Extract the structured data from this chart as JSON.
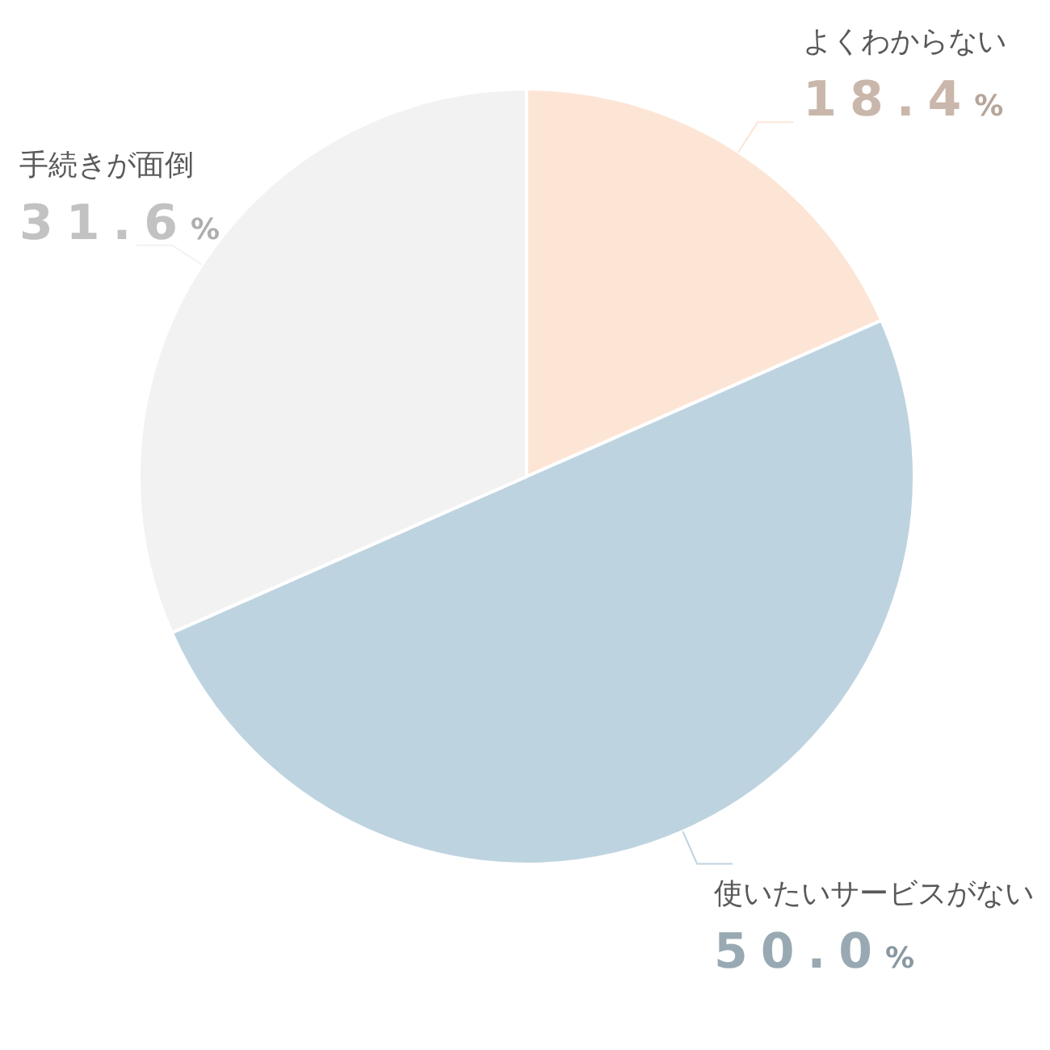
{
  "chart_data": {
    "type": "pie",
    "categories": [
      "よくわからない",
      "使いたいサービスがない",
      "手続きが面倒"
    ],
    "values": [
      18.4,
      50.0,
      31.6
    ],
    "colors": [
      "#fde5d6",
      "#bed3e0",
      "#f2f2f2"
    ],
    "value_labels": [
      "18.4%",
      "50.0%",
      "31.6%"
    ]
  }
}
